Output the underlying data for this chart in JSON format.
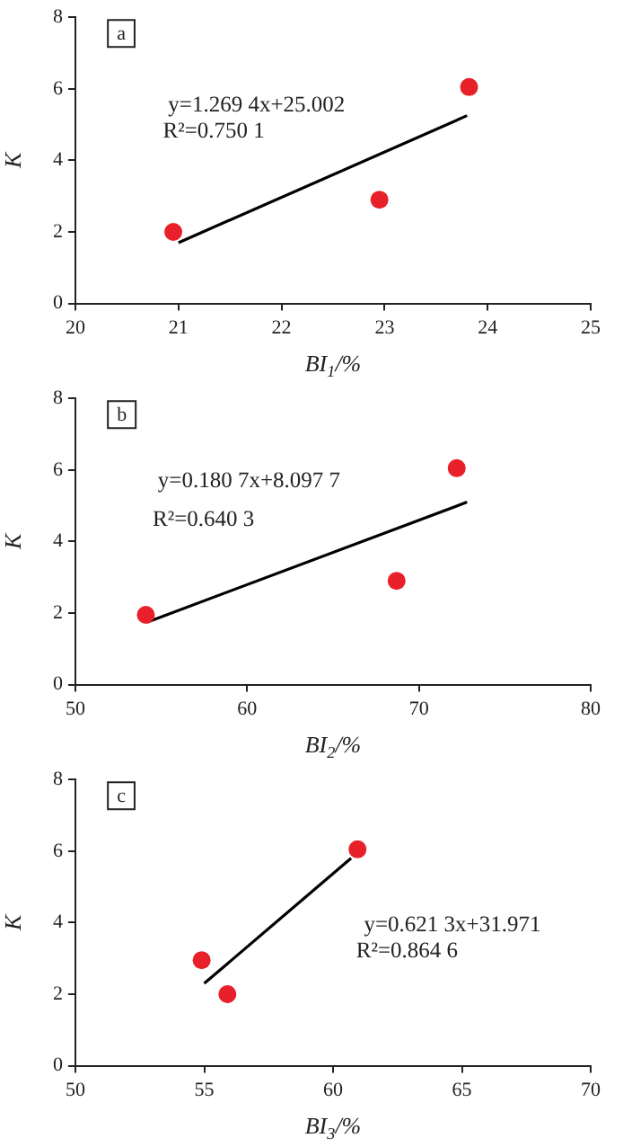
{
  "chart_data": [
    {
      "type": "scatter",
      "xlabel": "BI$_{1}$/%",
      "ylabel": "K",
      "xlim": [
        20,
        25
      ],
      "xticks": [
        20,
        21,
        22,
        23,
        24,
        25
      ],
      "ylim": [
        0,
        8
      ],
      "yticks": [
        0,
        2,
        4,
        6,
        8
      ],
      "grid": false,
      "annotations": [
        "a",
        "y=1.269 4x+25.002",
        "R²=0.750 1"
      ],
      "series": [
        {
          "color": "#e8202a",
          "marker": "circle",
          "x": [
            20.95,
            22.95,
            23.82
          ],
          "values": [
            2.0,
            2.9,
            6.05
          ]
        },
        {
          "type": "line",
          "color": "#000000",
          "marker": "none",
          "x": [
            21.0,
            23.8
          ],
          "values": [
            1.7,
            5.25
          ]
        }
      ]
    },
    {
      "type": "scatter",
      "xlabel": "BI$_{2}$/%",
      "ylabel": "K",
      "xlim": [
        50,
        80
      ],
      "xticks": [
        50,
        60,
        70,
        80
      ],
      "ylim": [
        0,
        8
      ],
      "yticks": [
        0,
        2,
        4,
        6,
        8
      ],
      "grid": false,
      "annotations": [
        "b",
        "y=0.180 7x+8.097 7",
        "R²=0.640 3"
      ],
      "series": [
        {
          "color": "#e8202a",
          "marker": "circle",
          "x": [
            54.1,
            68.7,
            72.2
          ],
          "values": [
            1.95,
            2.9,
            6.05
          ]
        },
        {
          "type": "line",
          "color": "#000000",
          "marker": "none",
          "x": [
            54.2,
            72.8
          ],
          "values": [
            1.75,
            5.1
          ]
        }
      ]
    },
    {
      "type": "scatter",
      "xlabel": "BI$_{3}$/%",
      "ylabel": "K",
      "xlim": [
        50,
        70
      ],
      "xticks": [
        50,
        55,
        60,
        65,
        70
      ],
      "ylim": [
        0,
        8
      ],
      "yticks": [
        0,
        2,
        4,
        6,
        8
      ],
      "grid": false,
      "annotations": [
        "c",
        "y=0.621 3x+31.971",
        "R²=0.864 6"
      ],
      "series": [
        {
          "color": "#e8202a",
          "marker": "circle",
          "x": [
            54.9,
            55.9,
            60.95
          ],
          "values": [
            2.95,
            2.0,
            6.05
          ]
        },
        {
          "type": "line",
          "color": "#000000",
          "marker": "none",
          "x": [
            55.0,
            60.7
          ],
          "values": [
            2.3,
            5.8
          ]
        }
      ]
    }
  ]
}
